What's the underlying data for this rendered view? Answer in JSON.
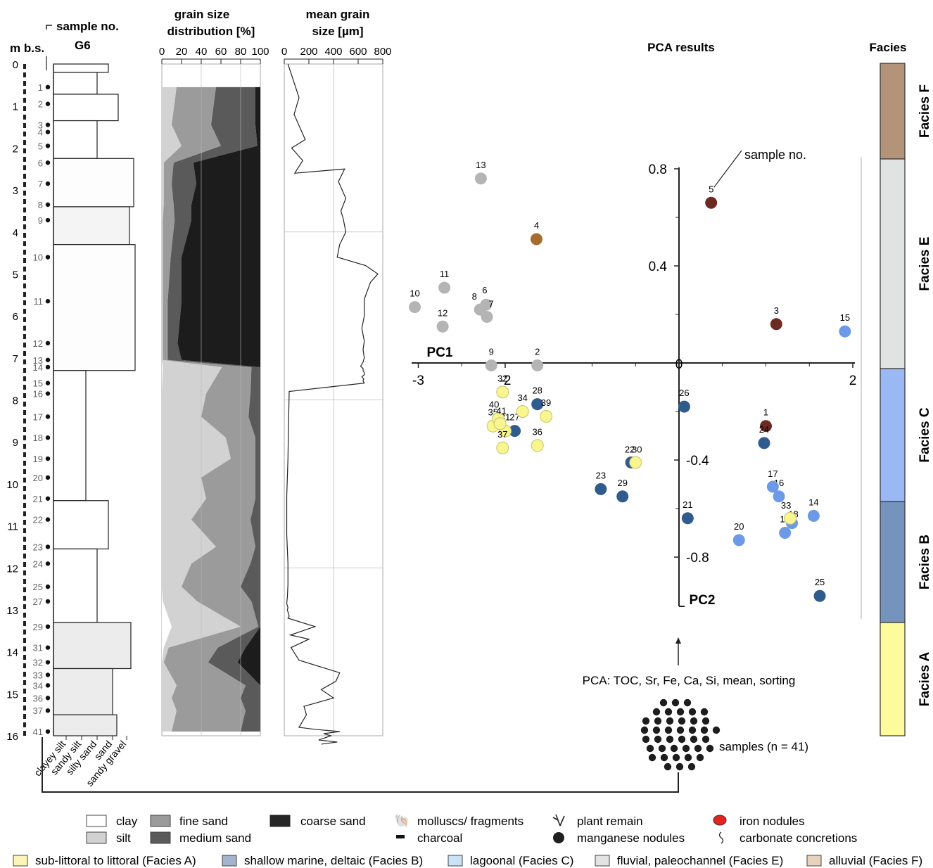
{
  "chart_data": [
    {
      "type": "column",
      "title": "G6",
      "sample_header": "sample no.",
      "ylabel": "m b.s.",
      "y_ticks": [
        0,
        1,
        2,
        3,
        4,
        5,
        6,
        7,
        8,
        9,
        10,
        11,
        12,
        13,
        14,
        15,
        16
      ],
      "ylim": [
        0,
        16
      ],
      "samples": [
        {
          "no": 1,
          "depth": 0.55
        },
        {
          "no": 2,
          "depth": 0.95
        },
        {
          "no": 3,
          "depth": 1.45
        },
        {
          "no": 4,
          "depth": 1.62
        },
        {
          "no": 5,
          "depth": 1.95
        },
        {
          "no": 6,
          "depth": 2.35
        },
        {
          "no": 7,
          "depth": 2.85
        },
        {
          "no": 8,
          "depth": 3.35
        },
        {
          "no": 9,
          "depth": 3.72
        },
        {
          "no": 10,
          "depth": 4.6
        },
        {
          "no": 11,
          "depth": 5.65
        },
        {
          "no": 12,
          "depth": 6.65
        },
        {
          "no": 13,
          "depth": 7.05
        },
        {
          "no": 14,
          "depth": 7.22
        },
        {
          "no": 15,
          "depth": 7.6
        },
        {
          "no": 16,
          "depth": 7.85
        },
        {
          "no": 17,
          "depth": 8.4
        },
        {
          "no": 18,
          "depth": 8.9
        },
        {
          "no": 19,
          "depth": 9.4
        },
        {
          "no": 20,
          "depth": 9.85
        },
        {
          "no": 21,
          "depth": 10.35
        },
        {
          "no": 22,
          "depth": 10.85
        },
        {
          "no": 23,
          "depth": 11.5
        },
        {
          "no": 24,
          "depth": 11.9
        },
        {
          "no": 25,
          "depth": 12.45
        },
        {
          "no": 27,
          "depth": 12.8
        },
        {
          "no": 29,
          "depth": 13.4
        },
        {
          "no": 31,
          "depth": 13.9
        },
        {
          "no": 32,
          "depth": 14.25
        },
        {
          "no": 33,
          "depth": 14.55
        },
        {
          "no": 34,
          "depth": 14.8
        },
        {
          "no": 36,
          "depth": 15.1
        },
        {
          "no": 37,
          "depth": 15.4
        },
        {
          "no": 41,
          "depth": 15.9
        }
      ],
      "grain_classes": [
        "clayey silt",
        "sandy silt",
        "silty sand",
        "sand",
        "sandy gravel"
      ]
    },
    {
      "type": "area",
      "title": "grain size distribution [%]",
      "x_ticks": [
        0,
        20,
        40,
        60,
        80,
        100
      ],
      "xlim": [
        0,
        100
      ],
      "depths": [
        0.55,
        1.45,
        1.95,
        2.35,
        2.85,
        3.35,
        3.72,
        4.6,
        5.65,
        6.65,
        7.05,
        7.22,
        7.85,
        8.4,
        8.9,
        9.4,
        9.85,
        10.35,
        10.85,
        11.5,
        11.9,
        12.45,
        12.8,
        13.4,
        13.9,
        14.25,
        14.8,
        15.1,
        15.4,
        15.9
      ],
      "series": [
        {
          "name": "clay",
          "values": [
            0,
            0,
            0,
            0,
            0,
            0,
            0,
            0,
            0,
            0,
            0,
            1,
            0,
            0,
            0,
            0,
            0,
            0,
            0,
            0,
            0,
            0,
            1,
            10,
            2,
            0,
            0,
            0,
            0,
            0
          ]
        },
        {
          "name": "silt",
          "values": [
            15,
            10,
            20,
            2,
            2,
            2,
            1,
            1,
            1,
            1,
            1,
            60,
            45,
            40,
            65,
            70,
            40,
            45,
            30,
            55,
            30,
            20,
            35,
            70,
            5,
            2,
            15,
            10,
            15,
            10
          ]
        },
        {
          "name": "fine sand",
          "values": [
            40,
            40,
            40,
            10,
            8,
            10,
            12,
            8,
            5,
            5,
            5,
            30,
            45,
            48,
            30,
            25,
            55,
            50,
            60,
            40,
            60,
            60,
            55,
            18,
            50,
            45,
            70,
            70,
            70,
            70
          ]
        },
        {
          "name": "medium sand",
          "values": [
            40,
            45,
            37,
            20,
            25,
            18,
            17,
            11,
            14,
            10,
            14,
            9,
            10,
            12,
            5,
            5,
            5,
            5,
            10,
            5,
            10,
            20,
            9,
            2,
            28,
            30,
            15,
            20,
            15,
            20
          ]
        },
        {
          "name": "coarse sand",
          "values": [
            5,
            5,
            3,
            68,
            65,
            70,
            70,
            80,
            80,
            84,
            80,
            0,
            0,
            0,
            0,
            0,
            0,
            0,
            0,
            0,
            0,
            0,
            0,
            0,
            15,
            23,
            0,
            0,
            0,
            0
          ]
        }
      ]
    },
    {
      "type": "line",
      "title": "mean grain size [µm]",
      "x_ticks": [
        0,
        200,
        400,
        600,
        800
      ],
      "xlim": [
        0,
        800
      ],
      "x": [
        30,
        120,
        80,
        170,
        60,
        150,
        85,
        490,
        440,
        500,
        460,
        480,
        500,
        450,
        430,
        660,
        760,
        700,
        650,
        650,
        630,
        650,
        640,
        650,
        640,
        620,
        640,
        640,
        650,
        650,
        630,
        645,
        640,
        650,
        40,
        35,
        30,
        20,
        20,
        30,
        30,
        25,
        20,
        30,
        25,
        30,
        35,
        40,
        30,
        250,
        50,
        200,
        55,
        120,
        450,
        420,
        300,
        400,
        160,
        180,
        140,
        120,
        260,
        450,
        320,
        380,
        330,
        280,
        430,
        300
      ],
      "depths": [
        0.0,
        0.8,
        1.2,
        1.8,
        2.0,
        2.3,
        2.6,
        2.5,
        2.8,
        3.2,
        3.5,
        3.7,
        4.0,
        4.3,
        4.6,
        4.8,
        5.0,
        5.2,
        5.6,
        6.0,
        6.3,
        6.6,
        6.8,
        7.0,
        7.1,
        7.2,
        7.25,
        7.3,
        7.35,
        7.4,
        7.45,
        7.5,
        7.55,
        7.6,
        7.8,
        8.5,
        9.4,
        10.3,
        11.2,
        11.9,
        12.4,
        12.7,
        12.85,
        12.95,
        13.0,
        13.05,
        13.1,
        13.15,
        13.2,
        13.4,
        13.6,
        13.7,
        13.9,
        14.2,
        14.5,
        14.7,
        14.9,
        15.1,
        15.3,
        15.5,
        15.7,
        15.8,
        15.85,
        15.9,
        15.95,
        16.0,
        16.05,
        16.1,
        16.15,
        16.2
      ]
    },
    {
      "type": "scatter",
      "title": "PCA results",
      "xlabel": "PC1",
      "ylabel": "PC2",
      "x_ticks": [
        -3,
        -2,
        0,
        2
      ],
      "y_ticks": [
        0.8,
        0.4,
        0,
        -0.4,
        -0.8
      ],
      "xlim": [
        -3.1,
        2.0
      ],
      "ylim": [
        -1.0,
        0.8
      ],
      "annotation": "sample no.",
      "points": [
        {
          "label": "1",
          "x": 1.0,
          "y": -0.26,
          "facies": "Facies F"
        },
        {
          "label": "2",
          "x": -1.63,
          "y": -0.01,
          "facies": "Facies E"
        },
        {
          "label": "3",
          "x": 1.12,
          "y": 0.16,
          "facies": "Facies F"
        },
        {
          "label": "4",
          "x": -1.64,
          "y": 0.51,
          "facies": "Facies F"
        },
        {
          "label": "5",
          "x": 0.37,
          "y": 0.66,
          "facies": "Facies F"
        },
        {
          "label": "6",
          "x": -2.22,
          "y": 0.24,
          "facies": "Facies E"
        },
        {
          "label": "7",
          "x": -2.21,
          "y": 0.19,
          "facies": "Facies E"
        },
        {
          "label": "8",
          "x": -2.29,
          "y": 0.22,
          "facies": "Facies E"
        },
        {
          "label": "9",
          "x": -2.16,
          "y": -0.01,
          "facies": "Facies E"
        },
        {
          "label": "10",
          "x": -3.04,
          "y": 0.23,
          "facies": "Facies E"
        },
        {
          "label": "11",
          "x": -2.7,
          "y": 0.31,
          "facies": "Facies E"
        },
        {
          "label": "12",
          "x": -2.72,
          "y": 0.15,
          "facies": "Facies E"
        },
        {
          "label": "13",
          "x": -2.28,
          "y": 0.76,
          "facies": "Facies E"
        },
        {
          "label": "14",
          "x": 1.55,
          "y": -0.63,
          "facies": "Facies C"
        },
        {
          "label": "15",
          "x": 1.91,
          "y": 0.13,
          "facies": "Facies C"
        },
        {
          "label": "16",
          "x": 1.15,
          "y": -0.55,
          "facies": "Facies C"
        },
        {
          "label": "17",
          "x": 1.08,
          "y": -0.51,
          "facies": "Facies C"
        },
        {
          "label": "18",
          "x": 1.3,
          "y": -0.66,
          "facies": "Facies C"
        },
        {
          "label": "19",
          "x": 1.22,
          "y": -0.7,
          "facies": "Facies C"
        },
        {
          "label": "20",
          "x": 0.69,
          "y": -0.73,
          "facies": "Facies C"
        },
        {
          "label": "21",
          "x": 0.1,
          "y": -0.64,
          "facies": "Facies B"
        },
        {
          "label": "22",
          "x": -0.55,
          "y": -0.41,
          "facies": "Facies B"
        },
        {
          "label": "23",
          "x": -0.9,
          "y": -0.52,
          "facies": "Facies B"
        },
        {
          "label": "24",
          "x": 0.98,
          "y": -0.33,
          "facies": "Facies B"
        },
        {
          "label": "25",
          "x": 1.62,
          "y": -0.96,
          "facies": "Facies B"
        },
        {
          "label": "26",
          "x": 0.06,
          "y": -0.18,
          "facies": "Facies B"
        },
        {
          "label": "27",
          "x": -1.89,
          "y": -0.28,
          "facies": "Facies B"
        },
        {
          "label": "28",
          "x": -1.63,
          "y": -0.17,
          "facies": "Facies B"
        },
        {
          "label": "29",
          "x": -0.65,
          "y": -0.55,
          "facies": "Facies B"
        },
        {
          "label": "30",
          "x": -0.5,
          "y": -0.41,
          "facies": "Facies A"
        },
        {
          "label": "31",
          "x": -2.0,
          "y": -0.28,
          "facies": "Facies A"
        },
        {
          "label": "32",
          "x": -2.03,
          "y": -0.12,
          "facies": "Facies A"
        },
        {
          "label": "33",
          "x": 1.28,
          "y": -0.64,
          "facies": "Facies A"
        },
        {
          "label": "34",
          "x": -1.8,
          "y": -0.2,
          "facies": "Facies A"
        },
        {
          "label": "35",
          "x": -2.14,
          "y": -0.26,
          "facies": "Facies A"
        },
        {
          "label": "36",
          "x": -1.63,
          "y": -0.34,
          "facies": "Facies A"
        },
        {
          "label": "37",
          "x": -2.03,
          "y": -0.35,
          "facies": "Facies A"
        },
        {
          "label": "39",
          "x": -1.53,
          "y": -0.22,
          "facies": "Facies A"
        },
        {
          "label": "40",
          "x": -2.08,
          "y": -0.23,
          "facies": "Facies A"
        },
        {
          "label": "41",
          "x": -2.06,
          "y": -0.25,
          "facies": "Facies A"
        }
      ]
    }
  ],
  "facies_bar": {
    "title": "Facies",
    "segments": [
      {
        "label": "Facies F",
        "color": "#b49479"
      },
      {
        "label": "Facies E",
        "color": "#e1e3e3"
      },
      {
        "label": "Facies C",
        "color": "#9ab8f4"
      },
      {
        "label": "Facies B",
        "color": "#7594bd"
      },
      {
        "label": "Facies A",
        "color": "#fdfb9b"
      }
    ]
  },
  "facies_colors": {
    "Facies F": "#6d2a22",
    "Facies E": "#b4b4b4",
    "Facies C": "#6d9ae6",
    "Facies B": "#2f5b8d",
    "Facies A": "#f9f68f",
    "point4": "#a66c2d"
  },
  "workflow": {
    "pca_text": "PCA: TOC, Sr, Fe, Ca, Si, mean, sorting",
    "samples_text": "samples (n = 41)"
  },
  "legend": {
    "clay": "clay",
    "silt": "silt",
    "fine_sand": "fine sand",
    "medium_sand": "medium sand",
    "coarse_sand": "coarse sand",
    "molluscs": "molluscs/ fragments",
    "charcoal": "charcoal",
    "plant": "plant remain",
    "manganese": "manganese nodules",
    "iron": "iron nodules",
    "carbonate": "carbonate concretions",
    "facies": [
      {
        "label": "sub-littoral to littoral (Facies A)",
        "color": "#fdf5b8"
      },
      {
        "label": "shallow marine, deltaic (Facies B)",
        "color": "#a4b4cf"
      },
      {
        "label": "lagoonal (Facies C)",
        "color": "#c9e2f7"
      },
      {
        "label": "fluvial, paleochannel (Facies E)",
        "color": "#e3e3e3"
      },
      {
        "label": "alluvial (Facies F)",
        "color": "#e8d2bd"
      }
    ]
  }
}
